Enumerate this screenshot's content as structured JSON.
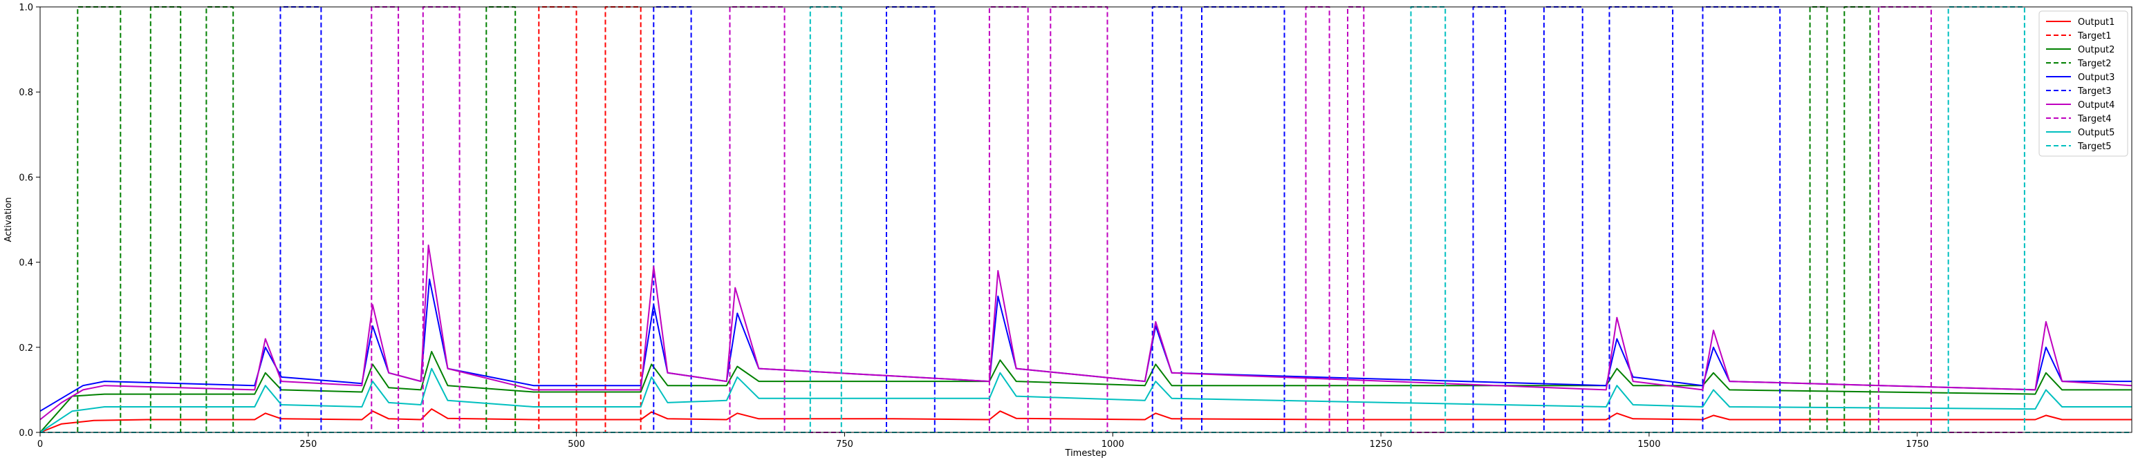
{
  "chart_data": {
    "type": "line",
    "title": "",
    "xlabel": "Timestep",
    "ylabel": "Activation",
    "xlim": [
      0,
      1950
    ],
    "ylim": [
      0,
      1.0
    ],
    "x_ticks": [
      0,
      250,
      500,
      750,
      1000,
      1250,
      1500,
      1750
    ],
    "y_ticks": [
      0.0,
      0.2,
      0.4,
      0.6,
      0.8,
      1.0
    ],
    "grid": false,
    "legend_position": "top-right",
    "series": [
      {
        "name": "Output1",
        "color": "#ff0000",
        "dash": "solid",
        "x": [
          0,
          20,
          50,
          100,
          200,
          210,
          225,
          300,
          310,
          325,
          355,
          365,
          380,
          460,
          560,
          570,
          585,
          640,
          650,
          670,
          795,
          885,
          895,
          910,
          1030,
          1040,
          1055,
          1210,
          1460,
          1470,
          1485,
          1550,
          1560,
          1575,
          1860,
          1870,
          1885,
          1950
        ],
        "y": [
          0.0,
          0.02,
          0.028,
          0.03,
          0.03,
          0.045,
          0.032,
          0.03,
          0.05,
          0.032,
          0.03,
          0.055,
          0.033,
          0.03,
          0.03,
          0.048,
          0.032,
          0.03,
          0.045,
          0.032,
          0.032,
          0.03,
          0.05,
          0.033,
          0.03,
          0.045,
          0.032,
          0.03,
          0.03,
          0.045,
          0.032,
          0.03,
          0.04,
          0.03,
          0.03,
          0.04,
          0.03,
          0.03
        ]
      },
      {
        "name": "Target1",
        "color": "#ff0000",
        "dash": "dashed",
        "x": [
          0,
          465,
          465,
          500,
          500,
          527,
          527,
          560,
          560,
          1950
        ],
        "y": [
          0,
          0,
          1,
          1,
          0,
          0,
          1,
          1,
          0,
          0
        ]
      },
      {
        "name": "Output2",
        "color": "#008000",
        "dash": "solid",
        "x": [
          0,
          30,
          60,
          200,
          210,
          225,
          300,
          310,
          325,
          355,
          365,
          380,
          460,
          560,
          570,
          585,
          640,
          650,
          670,
          885,
          895,
          910,
          1030,
          1040,
          1055,
          1460,
          1470,
          1485,
          1550,
          1560,
          1575,
          1860,
          1870,
          1885,
          1950
        ],
        "y": [
          0.0,
          0.085,
          0.09,
          0.09,
          0.14,
          0.1,
          0.095,
          0.16,
          0.105,
          0.1,
          0.19,
          0.11,
          0.095,
          0.095,
          0.16,
          0.11,
          0.11,
          0.155,
          0.12,
          0.12,
          0.17,
          0.12,
          0.11,
          0.16,
          0.11,
          0.11,
          0.15,
          0.11,
          0.11,
          0.14,
          0.1,
          0.09,
          0.14,
          0.1,
          0.1
        ]
      },
      {
        "name": "Target2",
        "color": "#008000",
        "dash": "dashed",
        "x": [
          0,
          35,
          35,
          75,
          75,
          103,
          103,
          131,
          131,
          155,
          155,
          180,
          180,
          416,
          416,
          443,
          443,
          1650,
          1650,
          1666,
          1666,
          1682,
          1682,
          1706,
          1706,
          1950
        ],
        "y": [
          0,
          0,
          1,
          1,
          0,
          0,
          1,
          1,
          0,
          0,
          1,
          1,
          0,
          0,
          1,
          1,
          0,
          0,
          1,
          1,
          0,
          0,
          1,
          1,
          0,
          0
        ]
      },
      {
        "name": "Output3",
        "color": "#0000ff",
        "dash": "solid",
        "x": [
          0,
          20,
          40,
          60,
          200,
          210,
          225,
          300,
          310,
          325,
          355,
          363,
          380,
          460,
          560,
          572,
          585,
          640,
          650,
          670,
          885,
          893,
          910,
          1030,
          1040,
          1055,
          1460,
          1470,
          1485,
          1550,
          1560,
          1575,
          1860,
          1870,
          1885,
          1950
        ],
        "y": [
          0.05,
          0.08,
          0.11,
          0.12,
          0.11,
          0.2,
          0.13,
          0.115,
          0.25,
          0.14,
          0.12,
          0.36,
          0.15,
          0.11,
          0.11,
          0.3,
          0.14,
          0.12,
          0.28,
          0.15,
          0.12,
          0.32,
          0.15,
          0.12,
          0.25,
          0.14,
          0.11,
          0.22,
          0.13,
          0.11,
          0.2,
          0.12,
          0.1,
          0.2,
          0.12,
          0.12
        ]
      },
      {
        "name": "Target3",
        "color": "#0000ff",
        "dash": "dashed",
        "x": [
          0,
          224,
          224,
          262,
          262,
          572,
          572,
          607,
          607,
          789,
          789,
          834,
          834,
          1037,
          1037,
          1064,
          1064,
          1083,
          1083,
          1160,
          1160,
          1336,
          1336,
          1366,
          1366,
          1402,
          1402,
          1438,
          1438,
          1463,
          1463,
          1522,
          1522,
          1550,
          1550,
          1622,
          1622,
          1950
        ],
        "y": [
          0,
          0,
          1,
          1,
          0,
          0,
          1,
          1,
          0,
          0,
          1,
          1,
          0,
          0,
          1,
          1,
          0,
          0,
          1,
          1,
          0,
          0,
          1,
          1,
          0,
          0,
          1,
          1,
          0,
          0,
          1,
          1,
          0,
          0,
          1,
          1,
          0,
          0
        ]
      },
      {
        "name": "Output4",
        "color": "#bf00bf",
        "dash": "solid",
        "x": [
          0,
          20,
          40,
          60,
          200,
          210,
          225,
          300,
          310,
          325,
          355,
          362,
          380,
          460,
          560,
          572,
          585,
          640,
          648,
          670,
          885,
          893,
          910,
          1030,
          1040,
          1055,
          1460,
          1470,
          1485,
          1550,
          1560,
          1575,
          1860,
          1870,
          1885,
          1950
        ],
        "y": [
          0.03,
          0.07,
          0.1,
          0.11,
          0.1,
          0.22,
          0.12,
          0.11,
          0.3,
          0.14,
          0.12,
          0.44,
          0.15,
          0.1,
          0.1,
          0.39,
          0.14,
          0.12,
          0.34,
          0.15,
          0.12,
          0.38,
          0.15,
          0.12,
          0.26,
          0.14,
          0.1,
          0.27,
          0.12,
          0.1,
          0.24,
          0.12,
          0.1,
          0.26,
          0.12,
          0.11
        ]
      },
      {
        "name": "Target4",
        "color": "#bf00bf",
        "dash": "dashed",
        "x": [
          0,
          309,
          309,
          334,
          334,
          357,
          357,
          391,
          391,
          643,
          643,
          694,
          694,
          885,
          885,
          921,
          921,
          942,
          942,
          995,
          995,
          1180,
          1180,
          1202,
          1202,
          1219,
          1219,
          1234,
          1234,
          1714,
          1714,
          1763,
          1763,
          1950
        ],
        "y": [
          0,
          0,
          1,
          1,
          0,
          0,
          1,
          1,
          0,
          0,
          1,
          1,
          0,
          0,
          1,
          1,
          0,
          0,
          1,
          1,
          0,
          0,
          1,
          1,
          0,
          0,
          1,
          1,
          0,
          0,
          1,
          1,
          0,
          0
        ]
      },
      {
        "name": "Output5",
        "color": "#00bfbf",
        "dash": "solid",
        "x": [
          0,
          30,
          60,
          200,
          210,
          225,
          300,
          310,
          325,
          355,
          365,
          380,
          460,
          560,
          570,
          585,
          640,
          650,
          670,
          885,
          895,
          910,
          1030,
          1040,
          1055,
          1460,
          1470,
          1485,
          1550,
          1560,
          1575,
          1860,
          1870,
          1885,
          1950
        ],
        "y": [
          0.0,
          0.05,
          0.06,
          0.06,
          0.11,
          0.065,
          0.06,
          0.12,
          0.07,
          0.065,
          0.15,
          0.075,
          0.06,
          0.06,
          0.13,
          0.07,
          0.075,
          0.13,
          0.08,
          0.08,
          0.14,
          0.085,
          0.075,
          0.12,
          0.08,
          0.06,
          0.11,
          0.065,
          0.06,
          0.1,
          0.06,
          0.055,
          0.1,
          0.06,
          0.06
        ]
      },
      {
        "name": "Target5",
        "color": "#00bfbf",
        "dash": "dashed",
        "x": [
          0,
          718,
          718,
          747,
          747,
          1278,
          1278,
          1310,
          1310,
          1779,
          1779,
          1850,
          1850,
          1950
        ],
        "y": [
          0,
          0,
          1,
          1,
          0,
          0,
          1,
          1,
          0,
          0,
          1,
          1,
          0,
          0
        ]
      }
    ]
  }
}
